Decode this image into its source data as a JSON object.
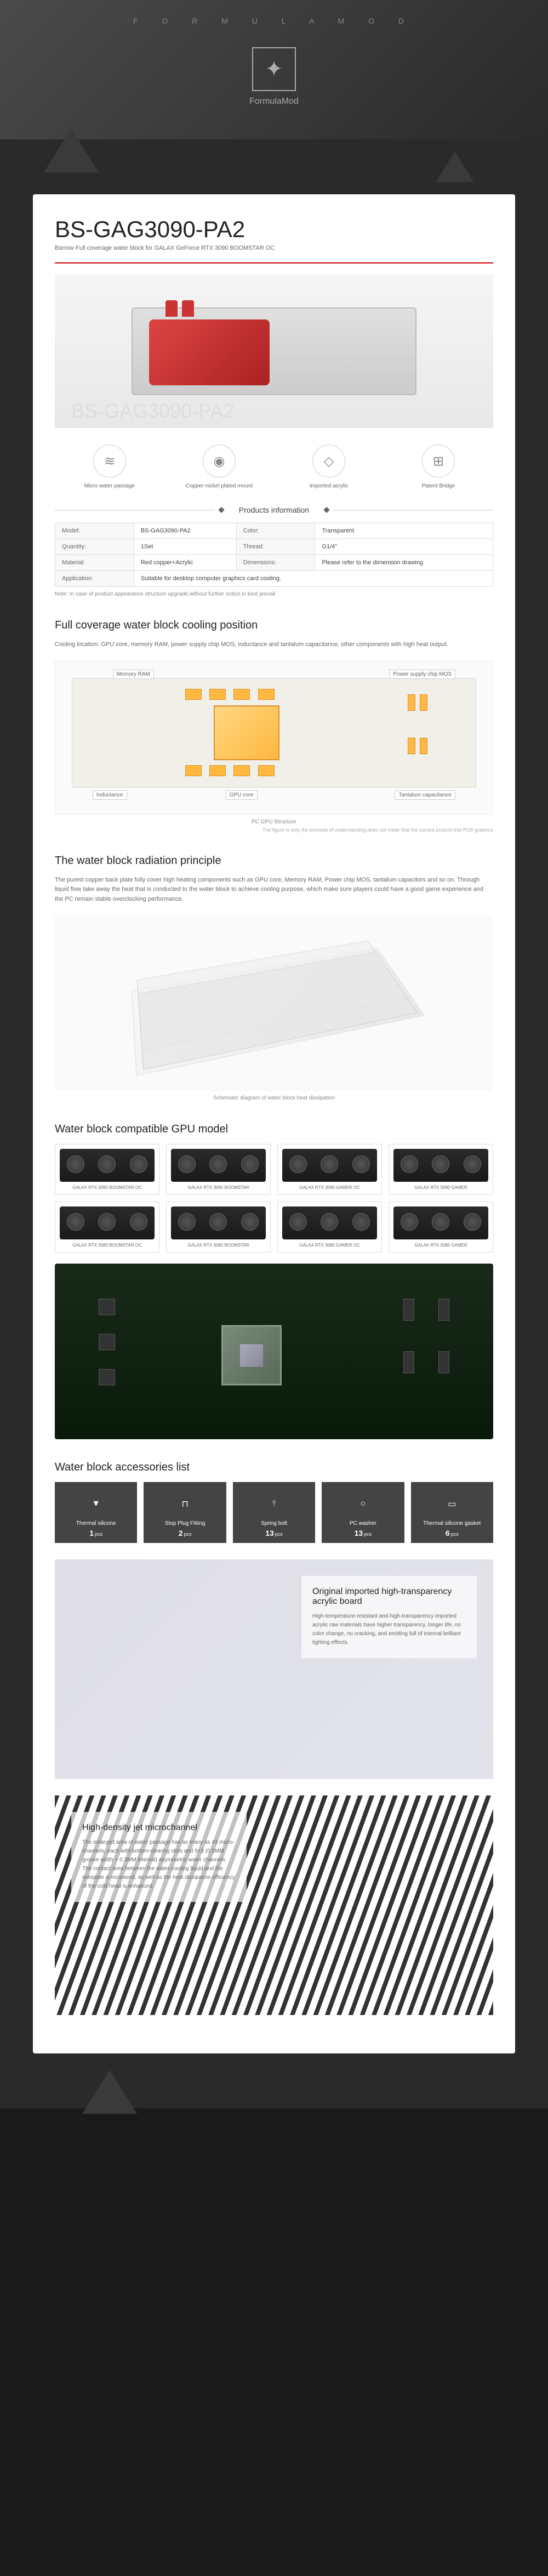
{
  "brand": {
    "letters": "F O R M U L A M O D",
    "name": "FormulaMod"
  },
  "product": {
    "model": "BS-GAG3090-PA2",
    "subtitle": "Barrow Full coverage water block for GALAX GeForce RTX 3090 BOOMSTAR OC",
    "watermark": "BS-GAG3090-PA2"
  },
  "features": [
    {
      "icon": "≋",
      "label": "Micro water passage"
    },
    {
      "icon": "◉",
      "label": "Copper-nickel plated mount"
    },
    {
      "icon": "◇",
      "label": "Imported acrylic"
    },
    {
      "icon": "⊞",
      "label": "Patent Bridge"
    }
  ],
  "info_header": "Products information",
  "specs": {
    "rows": [
      {
        "k1": "Model:",
        "v1": "BS-GAG3090-PA2",
        "k2": "Color:",
        "v2": "Transparent"
      },
      {
        "k1": "Quantity:",
        "v1": "1Set",
        "k2": "Thread:",
        "v2": "G1/4\""
      },
      {
        "k1": "Material:",
        "v1": "Red copper+Acrylic",
        "k2": "Dimensions:",
        "v2": "Please refer to the dimension drawing"
      },
      {
        "k1": "Application:",
        "v1": "Suitable for desktop computer graphics card cooling.",
        "k2": "",
        "v2": ""
      }
    ],
    "note": "Note: In case of product appearance structure upgrade,without further notice,in kind prevail"
  },
  "cooling": {
    "title": "Full coverage water block cooling position",
    "desc": "Cooling location: GPU core, memory RAM, power supply chip MOS, inductance and tantalum capacitance, other components with high heat output.",
    "labels": {
      "ram": "Memory RAM",
      "mos": "Power supply chip MOS",
      "ind": "Inductance",
      "gpu": "GPU core",
      "tant": "Tantalum capacitance"
    },
    "caption": "PC GPU Structure",
    "footnote": "The figure is only the principle of understanding,does not mean that the current product trial PCB graphics"
  },
  "radiation": {
    "title": "The water block radiation principle",
    "desc": "The purest copper back plate fully cover high heating components such as GPU core, Memory RAM, Power chip MOS, tantalum capacitors and so on. Through liquid flow take away the heat that is conducted to the water block to achieve cooling purpose, which make sure players could have a good game experience and the PC remain stable overclocking performance.",
    "caption": "Schematic diagram of water block heat dissipation"
  },
  "compat": {
    "title": "Water block compatible GPU model",
    "models": [
      "GALAX RTX 3090 BOOMSTAR OC",
      "GALAX RTX 3090 BOOMSTAR",
      "GALAX RTX 3090 GAMER OC",
      "GALAX RTX 3090 GAMER",
      "GALAX RTX 3080 BOOMSTAR OC",
      "GALAX RTX 3080 BOOMSTAR",
      "GALAX RTX 3080 GAMER OC",
      "GALAX RTX 3080 GAMER"
    ]
  },
  "accessories": {
    "title": "Water block accessories list",
    "items": [
      {
        "icon": "▼",
        "name": "Thermal silicone",
        "qty": "1",
        "unit": "pcs"
      },
      {
        "icon": "⊓",
        "name": "Stop Plug Fitting",
        "qty": "2",
        "unit": "pcs"
      },
      {
        "icon": "⫯",
        "name": "Spring bolt",
        "qty": "13",
        "unit": "pcs"
      },
      {
        "icon": "○",
        "name": "PC washer",
        "qty": "13",
        "unit": "pcs"
      },
      {
        "icon": "▭",
        "name": "Thermal silicone gasket",
        "qty": "6",
        "unit": "pcs"
      }
    ]
  },
  "acrylic": {
    "title": "Original imported high-transparency acrylic board",
    "desc": "High-temperature-resistant and high-transparency imported acrylic raw materials have higher transparency, longer life, no color change, no cracking, and emitting full of internal brilliant lighting effects."
  },
  "microchannel": {
    "title": "High-density jet microchannel",
    "desc": "The enlarged area of water passage has as many as 43 micro-channels, each with bottom-clearing slots and 5+3 (0.5MM groove width + 0.3MM interval) asymmetric water channels. The contact area between the water-cooling liquid and the soleplate is increased, as well as the heat dissipation efficiency of the cold head is enhanced."
  },
  "colors": {
    "accent_red": "#c00",
    "pcb_orange": "#ffb840",
    "dark_bg": "#2a2a2a"
  }
}
